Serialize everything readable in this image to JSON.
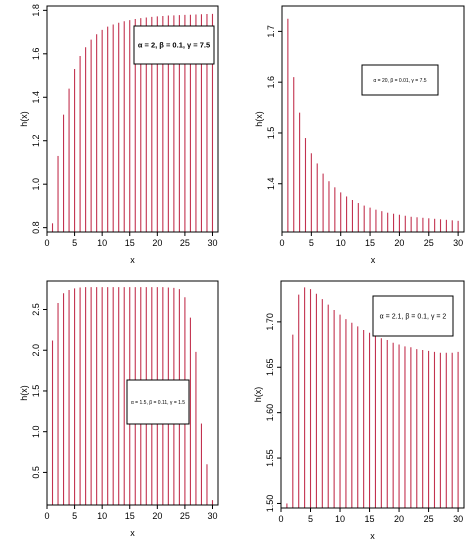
{
  "chart_data": [
    {
      "type": "bar",
      "xlabel": "x",
      "ylabel": "h(x)",
      "xlim": [
        0,
        31
      ],
      "ylim": [
        0.78,
        1.82
      ],
      "xticks": [
        "0",
        "5",
        "10",
        "15",
        "20",
        "25",
        "30"
      ],
      "yticks": [
        "0.8",
        "1.0",
        "1.2",
        "1.4",
        "1.6",
        "1.8"
      ],
      "legend": "α = 2, β = 0.1, γ = 7.5",
      "legend_position": "top-right",
      "bar_color": "#c2324f",
      "x": [
        1,
        2,
        3,
        4,
        5,
        6,
        7,
        8,
        9,
        10,
        11,
        12,
        13,
        14,
        15,
        16,
        17,
        18,
        19,
        20,
        21,
        22,
        23,
        24,
        25,
        26,
        27,
        28,
        29,
        30
      ],
      "values": [
        0.82,
        1.13,
        1.32,
        1.44,
        1.53,
        1.59,
        1.63,
        1.665,
        1.69,
        1.71,
        1.725,
        1.735,
        1.743,
        1.75,
        1.755,
        1.76,
        1.764,
        1.767,
        1.77,
        1.772,
        1.774,
        1.776,
        1.777,
        1.778,
        1.779,
        1.78,
        1.781,
        1.782,
        1.783,
        1.784
      ]
    },
    {
      "type": "bar",
      "xlabel": "x",
      "ylabel": "h(x)",
      "xlim": [
        0,
        31
      ],
      "ylim": [
        1.305,
        1.75
      ],
      "xticks": [
        "0",
        "5",
        "10",
        "15",
        "20",
        "25",
        "30"
      ],
      "yticks": [
        "1.4",
        "1.5",
        "1.6",
        "1.7"
      ],
      "legend": "α = 20, β = 0.01, γ = 7.5",
      "legend_position": "top-right",
      "bar_color": "#c2324f",
      "x": [
        1,
        2,
        3,
        4,
        5,
        6,
        7,
        8,
        9,
        10,
        11,
        12,
        13,
        14,
        15,
        16,
        17,
        18,
        19,
        20,
        21,
        22,
        23,
        24,
        25,
        26,
        27,
        28,
        29,
        30
      ],
      "values": [
        1.725,
        1.61,
        1.54,
        1.49,
        1.46,
        1.44,
        1.42,
        1.405,
        1.393,
        1.383,
        1.375,
        1.368,
        1.362,
        1.357,
        1.353,
        1.349,
        1.346,
        1.343,
        1.341,
        1.339,
        1.337,
        1.335,
        1.334,
        1.333,
        1.332,
        1.331,
        1.33,
        1.329,
        1.328,
        1.327
      ]
    },
    {
      "type": "bar",
      "xlabel": "x",
      "ylabel": "h(x)",
      "xlim": [
        0,
        31
      ],
      "ylim": [
        0.1,
        2.85
      ],
      "xticks": [
        "0",
        "5",
        "10",
        "15",
        "20",
        "25",
        "30"
      ],
      "yticks": [
        "0.5",
        "1.0",
        "1.5",
        "2.0",
        "2.5"
      ],
      "legend": "α = 1.5, β = 0.11, γ = 1.5",
      "legend_position": "center-right",
      "bar_color": "#c2324f",
      "x": [
        1,
        2,
        3,
        4,
        5,
        6,
        7,
        8,
        9,
        10,
        11,
        12,
        13,
        14,
        15,
        16,
        17,
        18,
        19,
        20,
        21,
        22,
        23,
        24,
        25,
        26,
        27,
        28,
        29,
        30
      ],
      "values": [
        2.12,
        2.58,
        2.7,
        2.74,
        2.76,
        2.77,
        2.775,
        2.775,
        2.775,
        2.775,
        2.775,
        2.775,
        2.775,
        2.775,
        2.775,
        2.775,
        2.775,
        2.775,
        2.775,
        2.775,
        2.775,
        2.77,
        2.765,
        2.75,
        2.65,
        2.4,
        1.98,
        1.1,
        0.6,
        0.16
      ]
    },
    {
      "type": "bar",
      "xlabel": "x",
      "ylabel": "h(x)",
      "xlim": [
        0,
        31
      ],
      "ylim": [
        1.495,
        1.745
      ],
      "xticks": [
        "0",
        "5",
        "10",
        "15",
        "20",
        "25",
        "30"
      ],
      "yticks": [
        "1.50",
        "1.55",
        "1.60",
        "1.65",
        "1.70"
      ],
      "legend": "α = 2.1, β = 0.1, γ = 2",
      "legend_position": "top-right",
      "bar_color": "#c2324f",
      "x": [
        1,
        2,
        3,
        4,
        5,
        6,
        7,
        8,
        9,
        10,
        11,
        12,
        13,
        14,
        15,
        16,
        17,
        18,
        19,
        20,
        21,
        22,
        23,
        24,
        25,
        26,
        27,
        28,
        29,
        30
      ],
      "values": [
        1.5,
        1.686,
        1.73,
        1.738,
        1.736,
        1.731,
        1.725,
        1.719,
        1.713,
        1.708,
        1.703,
        1.699,
        1.695,
        1.691,
        1.688,
        1.685,
        1.682,
        1.68,
        1.677,
        1.675,
        1.673,
        1.672,
        1.67,
        1.669,
        1.668,
        1.667,
        1.666,
        1.666,
        1.666,
        1.667
      ]
    }
  ]
}
